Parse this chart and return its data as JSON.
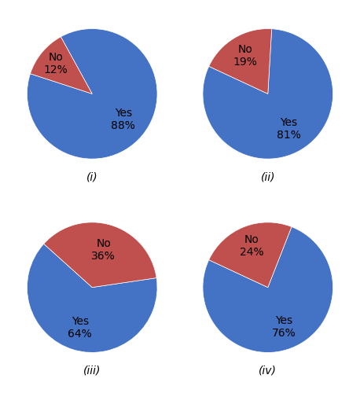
{
  "charts": [
    {
      "label": "(i)",
      "values": [
        88,
        12
      ],
      "colors": [
        "#4472C4",
        "#C0504D"
      ],
      "text_labels": [
        "Yes\n88%",
        "No\n12%"
      ],
      "startangle": 162,
      "pct_distance": [
        0.62,
        0.72
      ]
    },
    {
      "label": "(ii)",
      "values": [
        81,
        19
      ],
      "colors": [
        "#4472C4",
        "#C0504D"
      ],
      "text_labels": [
        "Yes\n81%",
        "No\n19%"
      ],
      "startangle": 155,
      "pct_distance": [
        0.63,
        0.68
      ]
    },
    {
      "label": "(iii)",
      "values": [
        64,
        36
      ],
      "colors": [
        "#4472C4",
        "#C0504D"
      ],
      "text_labels": [
        "Yes\n64%",
        "No\n36%"
      ],
      "startangle": 138,
      "pct_distance": [
        0.65,
        0.6
      ]
    },
    {
      "label": "(iv)",
      "values": [
        76,
        24
      ],
      "colors": [
        "#4472C4",
        "#C0504D"
      ],
      "text_labels": [
        "Yes\n76%",
        "No\n24%"
      ],
      "startangle": 155,
      "pct_distance": [
        0.65,
        0.68
      ]
    }
  ],
  "label_fontsize": 10,
  "text_fontsize": 10,
  "background_color": "#ffffff"
}
